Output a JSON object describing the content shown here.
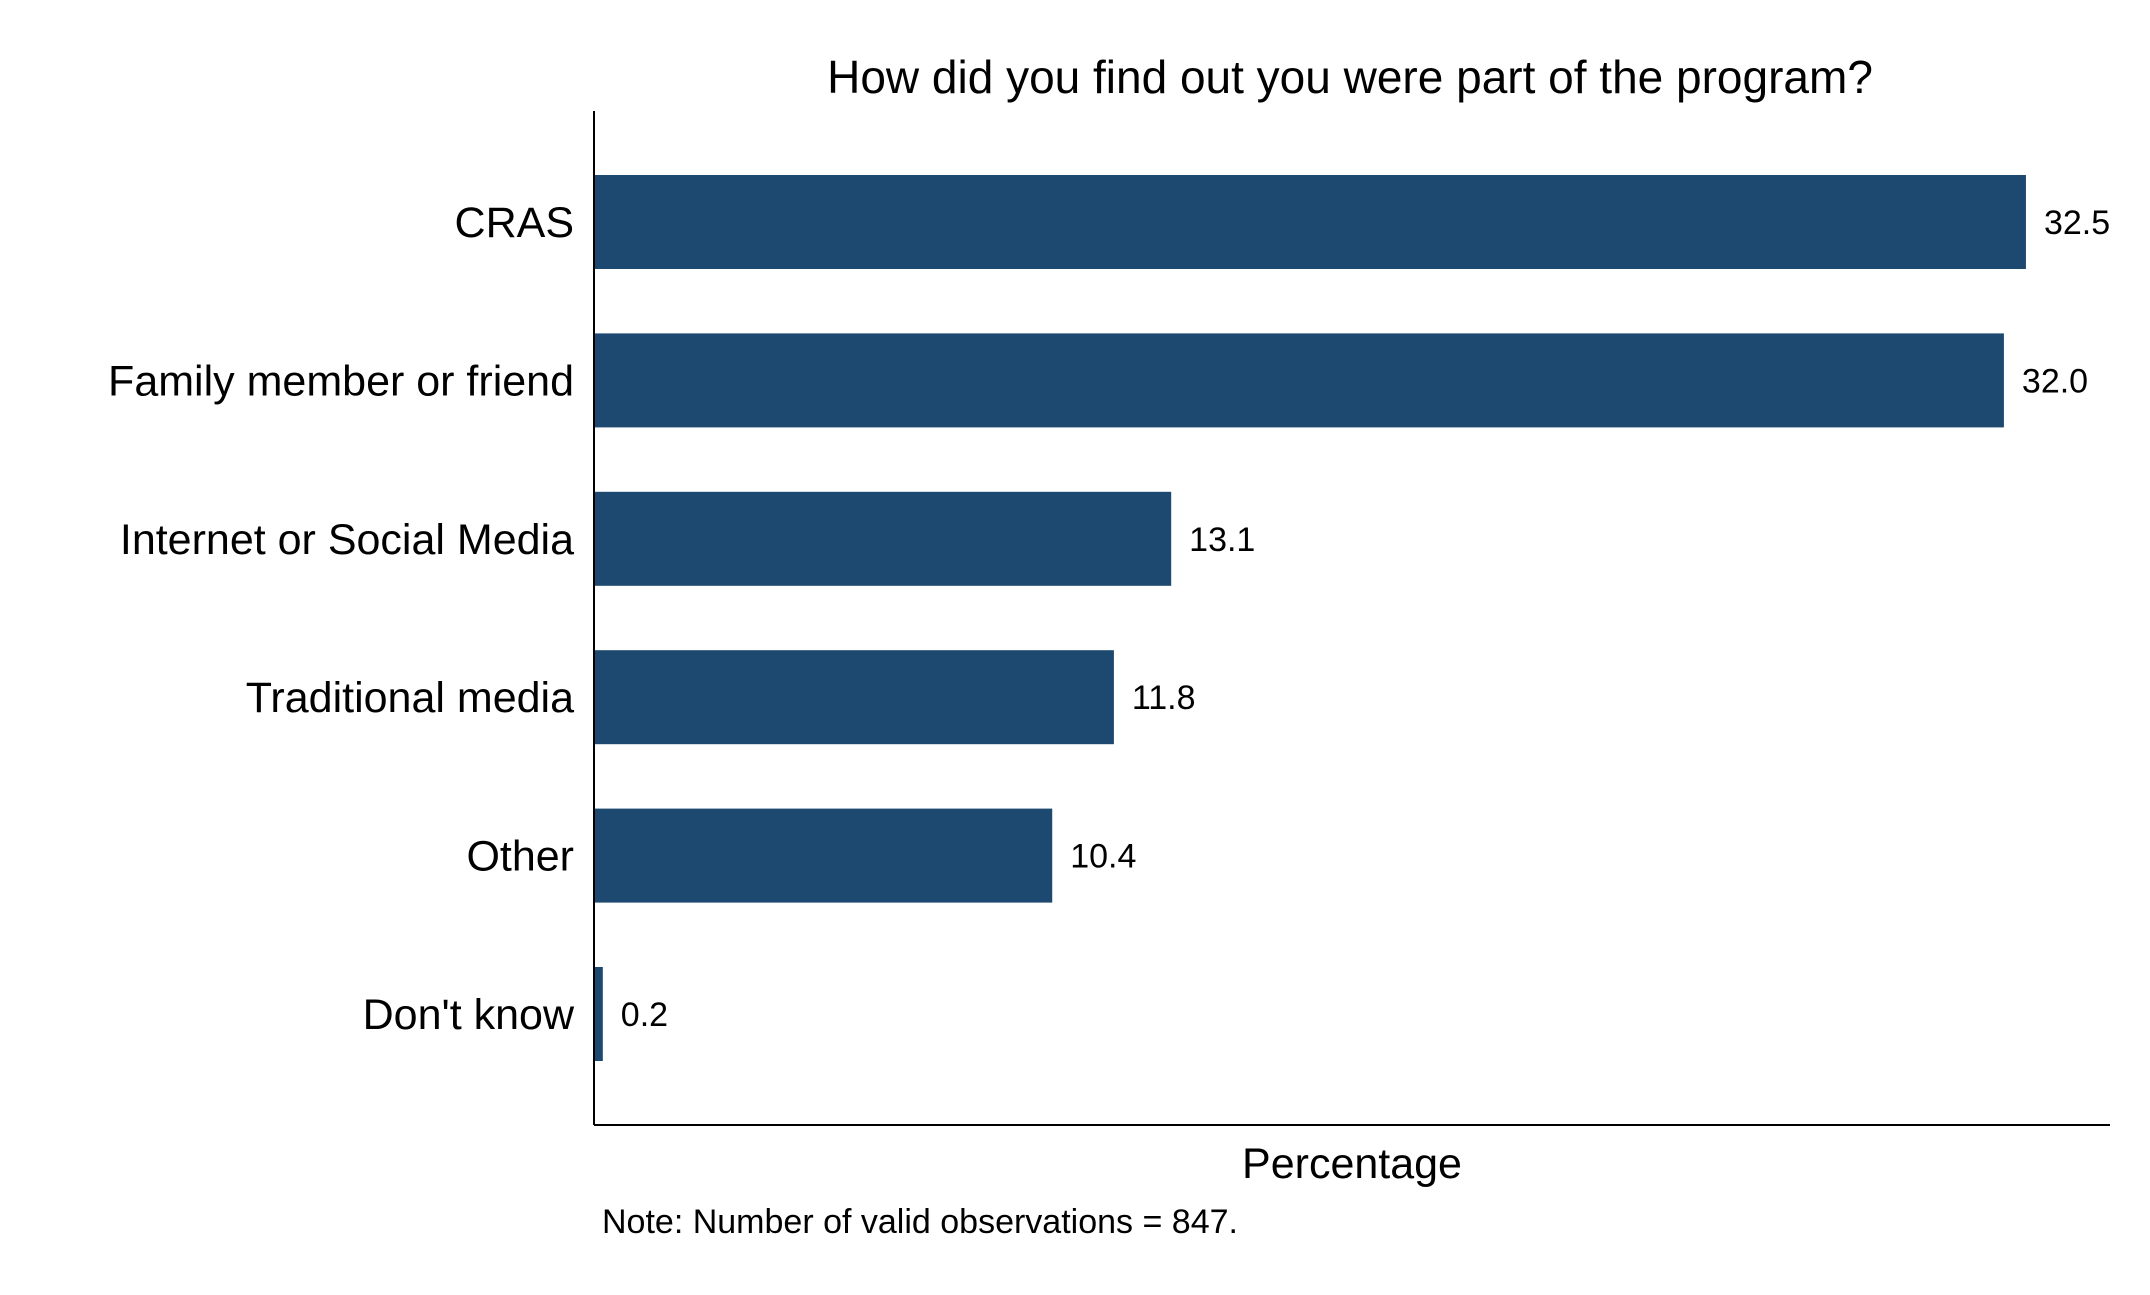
{
  "chart_data": {
    "type": "bar",
    "orientation": "horizontal",
    "title": "How did you find out you were part of the program?",
    "categories": [
      "CRAS",
      "Family member or friend",
      "Internet or Social Media",
      "Traditional media",
      "Other",
      "Don't know"
    ],
    "values": [
      32.5,
      32.0,
      13.1,
      11.8,
      10.4,
      0.2
    ],
    "value_labels": [
      "32.5",
      "32.0",
      "13.1",
      "11.8",
      "10.4",
      "0.2"
    ],
    "xlabel": "Percentage",
    "ylabel": "",
    "xlim": [
      0,
      33.5
    ],
    "grid": false,
    "legend": "none",
    "bar_color": "#1d4870",
    "note": "Note: Number of valid observations = 847."
  }
}
